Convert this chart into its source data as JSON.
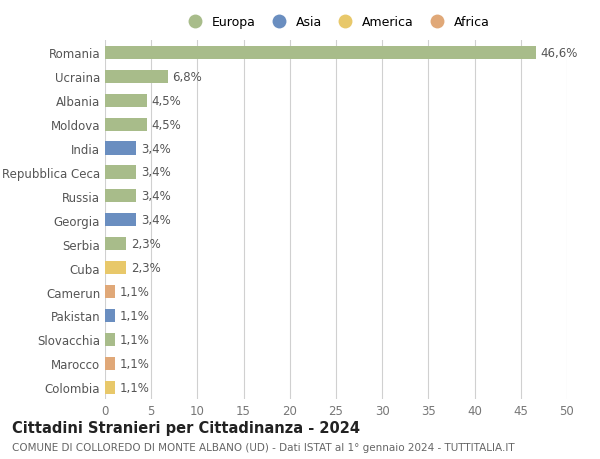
{
  "countries": [
    "Romania",
    "Ucraina",
    "Albania",
    "Moldova",
    "India",
    "Repubblica Ceca",
    "Russia",
    "Georgia",
    "Serbia",
    "Cuba",
    "Camerun",
    "Pakistan",
    "Slovacchia",
    "Marocco",
    "Colombia"
  ],
  "values": [
    46.6,
    6.8,
    4.5,
    4.5,
    3.4,
    3.4,
    3.4,
    3.4,
    2.3,
    2.3,
    1.1,
    1.1,
    1.1,
    1.1,
    1.1
  ],
  "labels": [
    "46,6%",
    "6,8%",
    "4,5%",
    "4,5%",
    "3,4%",
    "3,4%",
    "3,4%",
    "3,4%",
    "2,3%",
    "2,3%",
    "1,1%",
    "1,1%",
    "1,1%",
    "1,1%",
    "1,1%"
  ],
  "continents": [
    "Europa",
    "Europa",
    "Europa",
    "Europa",
    "Asia",
    "Europa",
    "Europa",
    "Asia",
    "Europa",
    "America",
    "Africa",
    "Asia",
    "Europa",
    "Africa",
    "America"
  ],
  "continent_colors": {
    "Europa": "#a8bc8a",
    "Asia": "#6a8ec0",
    "America": "#e8c86a",
    "Africa": "#e0a878"
  },
  "legend_labels": [
    "Europa",
    "Asia",
    "America",
    "Africa"
  ],
  "xlim": [
    0,
    50
  ],
  "xticks": [
    0,
    5,
    10,
    15,
    20,
    25,
    30,
    35,
    40,
    45,
    50
  ],
  "title": "Cittadini Stranieri per Cittadinanza - 2024",
  "subtitle": "COMUNE DI COLLOREDO DI MONTE ALBANO (UD) - Dati ISTAT al 1° gennaio 2024 - TUTTITALIA.IT",
  "bg_color": "#ffffff",
  "grid_color": "#d0d0d0",
  "bar_height": 0.55,
  "label_fontsize": 8.5,
  "ytick_fontsize": 8.5,
  "xtick_fontsize": 8.5,
  "title_fontsize": 10.5,
  "subtitle_fontsize": 7.5,
  "legend_fontsize": 9
}
